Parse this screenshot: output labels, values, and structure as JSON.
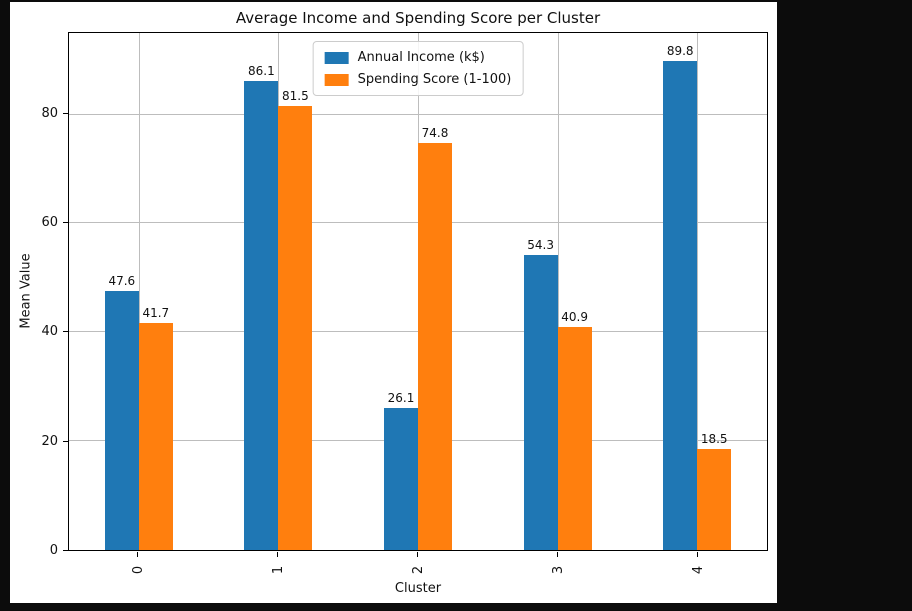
{
  "page": {
    "background": "#0c0c0c",
    "figure_background": "#ffffff"
  },
  "chart_data": {
    "type": "bar",
    "title": "Average Income and Spending Score per Cluster",
    "xlabel": "Cluster",
    "ylabel": "Mean Value",
    "categories": [
      "0",
      "1",
      "2",
      "3",
      "4"
    ],
    "series": [
      {
        "name": "Annual Income (k$)",
        "color": "#1f77b4",
        "values": [
          47.6,
          86.1,
          26.1,
          54.3,
          89.8
        ]
      },
      {
        "name": "Spending Score (1-100)",
        "color": "#ff7f0e",
        "values": [
          41.7,
          81.5,
          74.8,
          40.9,
          18.5
        ]
      }
    ],
    "ylim": [
      0,
      95
    ],
    "yticks": [
      0,
      20,
      40,
      60,
      80
    ],
    "grid": true,
    "legend_position": "upper center",
    "bar_label_decimals": 1
  }
}
